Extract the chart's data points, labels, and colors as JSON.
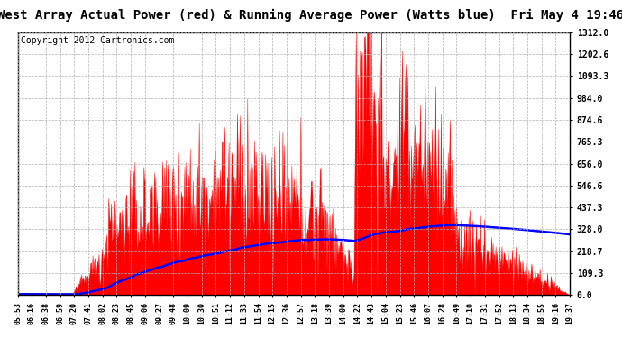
{
  "title": "West Array Actual Power (red) & Running Average Power (Watts blue)  Fri May 4 19:46",
  "copyright": "Copyright 2012 Cartronics.com",
  "ylim": [
    0.0,
    1312.0
  ],
  "yticks": [
    0.0,
    109.3,
    218.7,
    328.0,
    437.3,
    546.6,
    656.0,
    765.3,
    874.6,
    984.0,
    1093.3,
    1202.6,
    1312.0
  ],
  "x_labels": [
    "05:53",
    "06:16",
    "06:38",
    "06:59",
    "07:20",
    "07:41",
    "08:02",
    "08:23",
    "08:45",
    "09:06",
    "09:27",
    "09:48",
    "10:09",
    "10:30",
    "10:51",
    "11:12",
    "11:33",
    "11:54",
    "12:15",
    "12:36",
    "12:57",
    "13:18",
    "13:39",
    "14:00",
    "14:22",
    "14:43",
    "15:04",
    "15:23",
    "15:46",
    "16:07",
    "16:28",
    "16:49",
    "17:10",
    "17:31",
    "17:52",
    "18:13",
    "18:34",
    "18:55",
    "19:16",
    "19:37"
  ],
  "background_color": "#ffffff",
  "grid_color": "#b0b0b0",
  "red_color": "#ff0000",
  "blue_color": "#0000ff",
  "title_fontsize": 10,
  "copyright_fontsize": 7
}
